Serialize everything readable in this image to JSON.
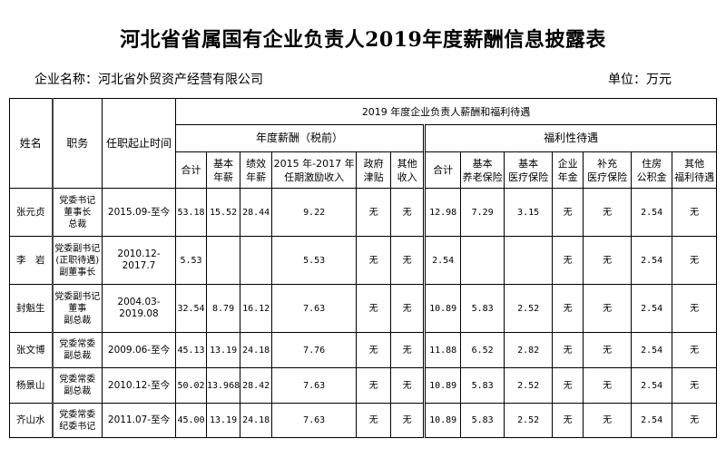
{
  "title": "河北省省属国有企业负责人2019年度薪酬信息披露表",
  "company_label": "企业名称：河北省外贸资产经营有限公司",
  "unit_label": "单位：万元",
  "headers": {
    "name": "姓名",
    "position": "职务",
    "term": "任职起止时间",
    "group": "2019 年度企业负责人薪酬和福利待遇",
    "salary_group": "年度薪酬（税前）",
    "welfare_group": "福利性待遇",
    "salary_cols": [
      "合计",
      "基本\n年薪",
      "绩效\n年薪",
      "2015 年-2017 年\n任期激励收入",
      "政府\n津贴",
      "其他\n收入"
    ],
    "welfare_cols": [
      "合计",
      "基本\n养老保险",
      "基本\n医疗保险",
      "企业\n年金",
      "补充\n医疗保险",
      "住房\n公积金",
      "其他\n福利待遇"
    ]
  },
  "rows": [
    {
      "name": "张元贞",
      "position": "党委书记\n董事长\n总裁",
      "term": "2015.09-至今",
      "s_total": "53.18",
      "s_base": "15.52",
      "s_perf": "28.44",
      "s_incent": "9.22",
      "s_gov": "无",
      "s_other": "无",
      "w_total": "12.98",
      "w_pension": "7.29",
      "w_medical": "3.15",
      "w_annuity": "无",
      "w_supp": "无",
      "w_housing": "2.54",
      "w_other": "无"
    },
    {
      "name": "李　岩",
      "position": "党委副书记\n(正职待遇)\n副董事长",
      "term": "2010.12-2017.7",
      "s_total": "5.53",
      "s_base": "",
      "s_perf": "",
      "s_incent": "5.53",
      "s_gov": "无",
      "s_other": "无",
      "w_total": "2.54",
      "w_pension": "",
      "w_medical": "",
      "w_annuity": "无",
      "w_supp": "无",
      "w_housing": "2.54",
      "w_other": "无"
    },
    {
      "name": "封魁生",
      "position": "党委副书记\n董事\n副总裁",
      "term": "2004.03-2019.08",
      "s_total": "32.54",
      "s_base": "8.79",
      "s_perf": "16.12",
      "s_incent": "7.63",
      "s_gov": "无",
      "s_other": "无",
      "w_total": "10.89",
      "w_pension": "5.83",
      "w_medical": "2.52",
      "w_annuity": "无",
      "w_supp": "无",
      "w_housing": "2.54",
      "w_other": "无"
    },
    {
      "name": "张文博",
      "position": "党委常委\n副总裁",
      "term": "2009.06-至今",
      "s_total": "45.13",
      "s_base": "13.19",
      "s_perf": "24.18",
      "s_incent": "7.76",
      "s_gov": "无",
      "s_other": "无",
      "w_total": "11.88",
      "w_pension": "6.52",
      "w_medical": "2.82",
      "w_annuity": "无",
      "w_supp": "无",
      "w_housing": "2.54",
      "w_other": "无"
    },
    {
      "name": "杨景山",
      "position": "党委常委\n副总裁",
      "term": "2010.12-至今",
      "s_total": "50.02",
      "s_base": "13.968",
      "s_perf": "28.42",
      "s_incent": "7.63",
      "s_gov": "无",
      "s_other": "无",
      "w_total": "10.89",
      "w_pension": "5.83",
      "w_medical": "2.52",
      "w_annuity": "无",
      "w_supp": "无",
      "w_housing": "2.54",
      "w_other": "无"
    },
    {
      "name": "齐山水",
      "position": "党委常委\n纪委书记",
      "term": "2011.07-至今",
      "s_total": "45.00",
      "s_base": "13.19",
      "s_perf": "24.18",
      "s_incent": "7.63",
      "s_gov": "无",
      "s_other": "无",
      "w_total": "10.89",
      "w_pension": "5.83",
      "w_medical": "2.52",
      "w_annuity": "无",
      "w_supp": "无",
      "w_housing": "2.54",
      "w_other": "无"
    }
  ]
}
